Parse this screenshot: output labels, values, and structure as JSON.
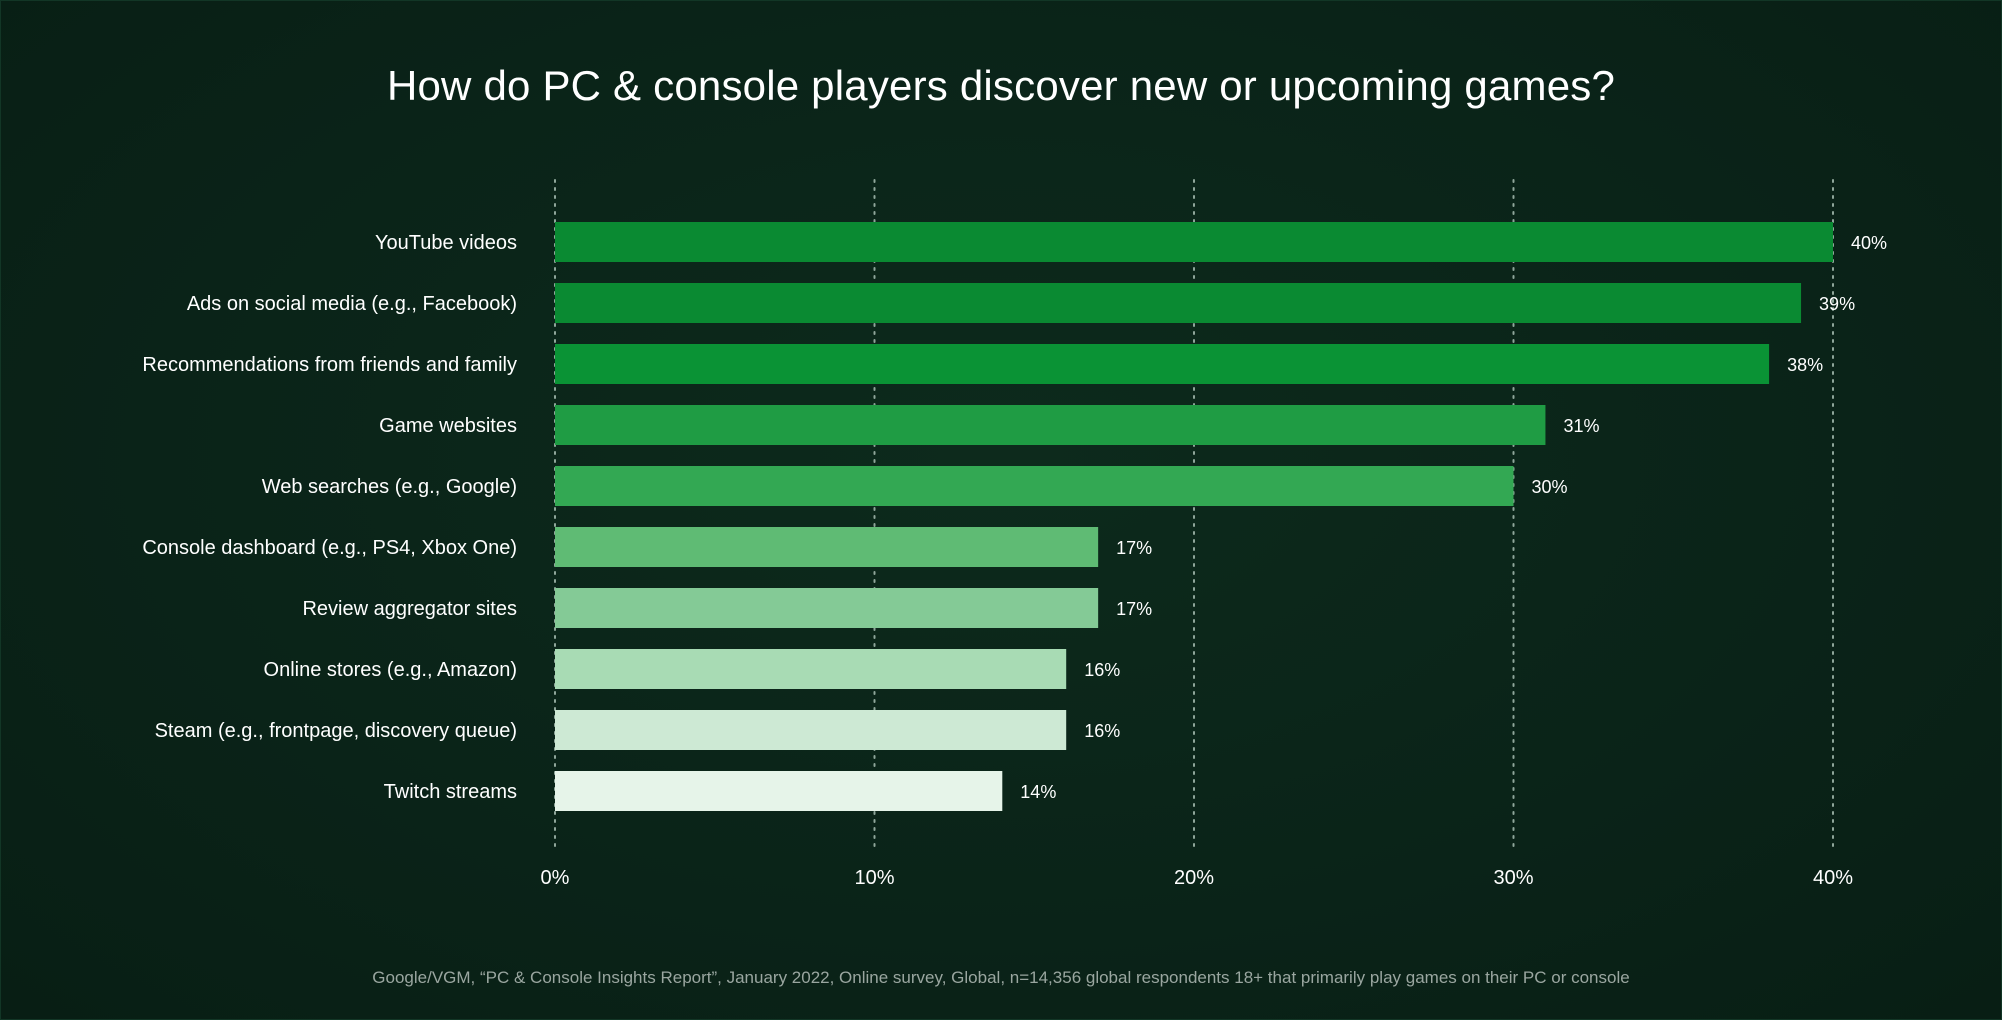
{
  "chart_data": {
    "type": "bar",
    "orientation": "horizontal",
    "title": "How do PC & console players discover new or upcoming games?",
    "categories": [
      "YouTube videos",
      "Ads on social media (e.g., Facebook)",
      "Recommendations from friends and family",
      "Game websites",
      "Web searches (e.g., Google)",
      "Console dashboard (e.g., PS4, Xbox One)",
      "Review aggregator sites",
      "Online stores (e.g., Amazon)",
      "Steam (e.g., frontpage, discovery queue)",
      "Twitch streams"
    ],
    "values": [
      40,
      39,
      38,
      31,
      30,
      17,
      17,
      16,
      16,
      14
    ],
    "value_labels": [
      "40%",
      "39%",
      "38%",
      "31%",
      "30%",
      "17%",
      "17%",
      "16%",
      "16%",
      "14%"
    ],
    "bar_colors": [
      "#0a8a32",
      "#0a8a32",
      "#0a9335",
      "#1f9c44",
      "#33a853",
      "#5fbb74",
      "#84ca96",
      "#a8dbb4",
      "#cde9d4",
      "#e6f4e9"
    ],
    "xlim": [
      0,
      40
    ],
    "xticks": [
      0,
      10,
      20,
      30,
      40
    ],
    "xtick_labels": [
      "0%",
      "10%",
      "20%",
      "30%",
      "40%"
    ],
    "grid": "vertical dotted",
    "xlabel": "",
    "ylabel": ""
  },
  "source_note": "Google/VGM, “PC & Console Insights Report”, January 2022, Online survey, Global, n=14,356 global respondents 18+ that primarily play games on their PC or console"
}
